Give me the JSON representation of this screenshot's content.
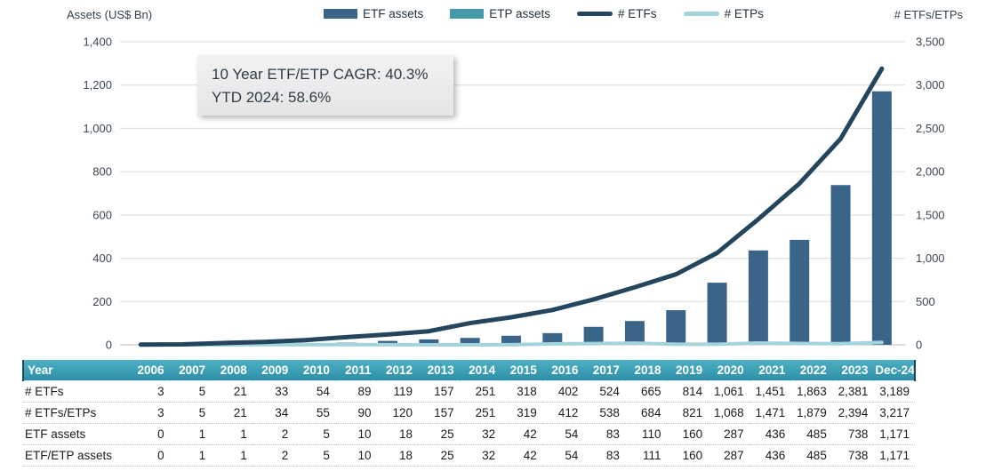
{
  "chart": {
    "left_axis_title": "Assets (US$ Bn)",
    "right_axis_title": "# ETFs/ETPs",
    "annotation": {
      "line1": "10 Year ETF/ETP CAGR: 40.3%",
      "line2": "YTD 2024: 58.6%"
    },
    "legend": [
      {
        "label": "ETF assets",
        "type": "bar",
        "color": "#3b6588"
      },
      {
        "label": "ETP assets",
        "type": "bar",
        "color": "#4599a9"
      },
      {
        "label": "# ETFs",
        "type": "line",
        "color": "#24455e"
      },
      {
        "label": "# ETPs",
        "type": "line",
        "color": "#a3d4de"
      }
    ],
    "colors": {
      "grid": "#dcdcdc",
      "zero_line": "#b9bcbe",
      "header_gradient_top": "#4fb0c4",
      "header_gradient_bottom": "#2d8fa7"
    }
  },
  "chart_data": {
    "type": "bar",
    "subtype": "combo bar+line, dual axis",
    "title": "",
    "grid": true,
    "legend_position": "top",
    "categories": [
      "2006",
      "2007",
      "2008",
      "2009",
      "2010",
      "2011",
      "2012",
      "2013",
      "2014",
      "2015",
      "2016",
      "2017",
      "2018",
      "2019",
      "2020",
      "2021",
      "2022",
      "2023",
      "Dec-24"
    ],
    "left_axis": {
      "label": "Assets (US$ Bn)",
      "min": 0,
      "max": 1400,
      "ticks": [
        "0",
        "200",
        "400",
        "600",
        "800",
        "1,000",
        "1,200",
        "1,400"
      ]
    },
    "right_axis": {
      "label": "# ETFs/ETPs",
      "min": 0,
      "max": 3500,
      "ticks": [
        "0",
        "500",
        "1,000",
        "1,500",
        "2,000",
        "2,500",
        "3,000",
        "3,500"
      ]
    },
    "series": [
      {
        "name": "ETF assets",
        "type": "bar",
        "axis": "left",
        "color": "#3b6588",
        "values": [
          0,
          1,
          1,
          2,
          5,
          10,
          18,
          25,
          32,
          42,
          54,
          83,
          110,
          160,
          287,
          436,
          485,
          738,
          1171
        ]
      },
      {
        "name": "ETP assets",
        "type": "bar",
        "axis": "left",
        "color": "#4599a9",
        "values": [
          0,
          0,
          0,
          0,
          0,
          0,
          0,
          0,
          0,
          0,
          0,
          0,
          1,
          0,
          0,
          0,
          0,
          0,
          0
        ]
      },
      {
        "name": "# ETPs",
        "type": "line",
        "axis": "right",
        "color": "#a3d4de",
        "width": 4,
        "values": [
          0,
          0,
          0,
          1,
          1,
          1,
          1,
          0,
          0,
          1,
          10,
          14,
          19,
          7,
          7,
          20,
          16,
          13,
          28
        ]
      },
      {
        "name": "# ETFs",
        "type": "line",
        "axis": "right",
        "color": "#24455e",
        "width": 5,
        "values": [
          3,
          5,
          21,
          33,
          54,
          89,
          119,
          157,
          251,
          318,
          402,
          524,
          665,
          814,
          1061,
          1451,
          1863,
          2381,
          3189
        ]
      }
    ]
  },
  "table": {
    "header": [
      "Year",
      "2006",
      "2007",
      "2008",
      "2009",
      "2010",
      "2011",
      "2012",
      "2013",
      "2014",
      "2015",
      "2016",
      "2017",
      "2018",
      "2019",
      "2020",
      "2021",
      "2022",
      "2023",
      "Dec-24"
    ],
    "rows": [
      {
        "label": "# ETFs",
        "values": [
          "3",
          "5",
          "21",
          "33",
          "54",
          "89",
          "119",
          "157",
          "251",
          "318",
          "402",
          "524",
          "665",
          "814",
          "1,061",
          "1,451",
          "1,863",
          "2,381",
          "3,189"
        ]
      },
      {
        "label": "# ETFs/ETPs",
        "values": [
          "3",
          "5",
          "21",
          "34",
          "55",
          "90",
          "120",
          "157",
          "251",
          "319",
          "412",
          "538",
          "684",
          "821",
          "1,068",
          "1,471",
          "1,879",
          "2,394",
          "3,217"
        ]
      },
      {
        "label": "ETF assets",
        "values": [
          "0",
          "1",
          "1",
          "2",
          "5",
          "10",
          "18",
          "25",
          "32",
          "42",
          "54",
          "83",
          "110",
          "160",
          "287",
          "436",
          "485",
          "738",
          "1,171"
        ]
      },
      {
        "label": "ETF/ETP assets",
        "values": [
          "0",
          "1",
          "1",
          "2",
          "5",
          "10",
          "18",
          "25",
          "32",
          "42",
          "54",
          "83",
          "111",
          "160",
          "287",
          "436",
          "485",
          "738",
          "1,171"
        ]
      }
    ]
  }
}
